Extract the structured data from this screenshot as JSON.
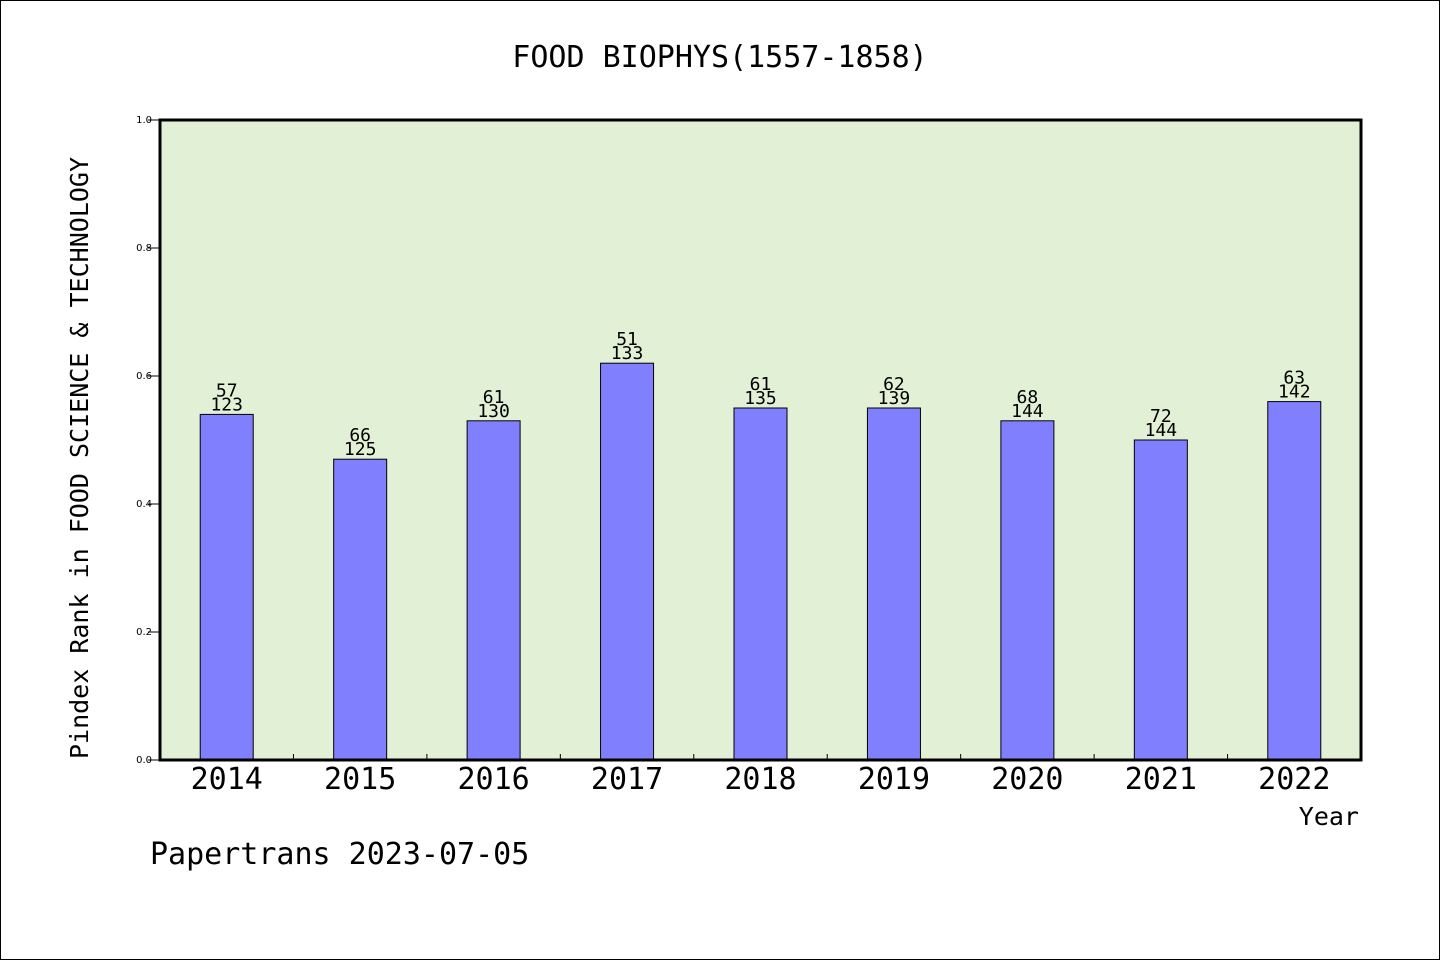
{
  "chart_data": {
    "type": "bar",
    "title": "FOOD BIOPHYS(1557-1858)",
    "xlabel": "Year",
    "ylabel": "Pindex Rank in FOOD SCIENCE & TECHNOLOGY",
    "categories": [
      "2014",
      "2015",
      "2016",
      "2017",
      "2018",
      "2019",
      "2020",
      "2021",
      "2022"
    ],
    "values": [
      0.54,
      0.47,
      0.53,
      0.62,
      0.55,
      0.55,
      0.53,
      0.5,
      0.56
    ],
    "ranks": [
      "57",
      "66",
      "61",
      "51",
      "61",
      "62",
      "68",
      "72",
      "63"
    ],
    "totals": [
      "123",
      "125",
      "130",
      "133",
      "135",
      "139",
      "144",
      "144",
      "142"
    ],
    "ylim": [
      0.0,
      1.0
    ],
    "yticks": [
      "0.0",
      "0.2",
      "0.4",
      "0.6",
      "0.8",
      "1.0"
    ],
    "grid": false,
    "colors": {
      "plot_background": "#e2f0d6",
      "bar_fill": "#8080ff",
      "bar_stroke": "#000000"
    }
  },
  "footer": {
    "credit": "Papertrans 2023-07-05"
  }
}
